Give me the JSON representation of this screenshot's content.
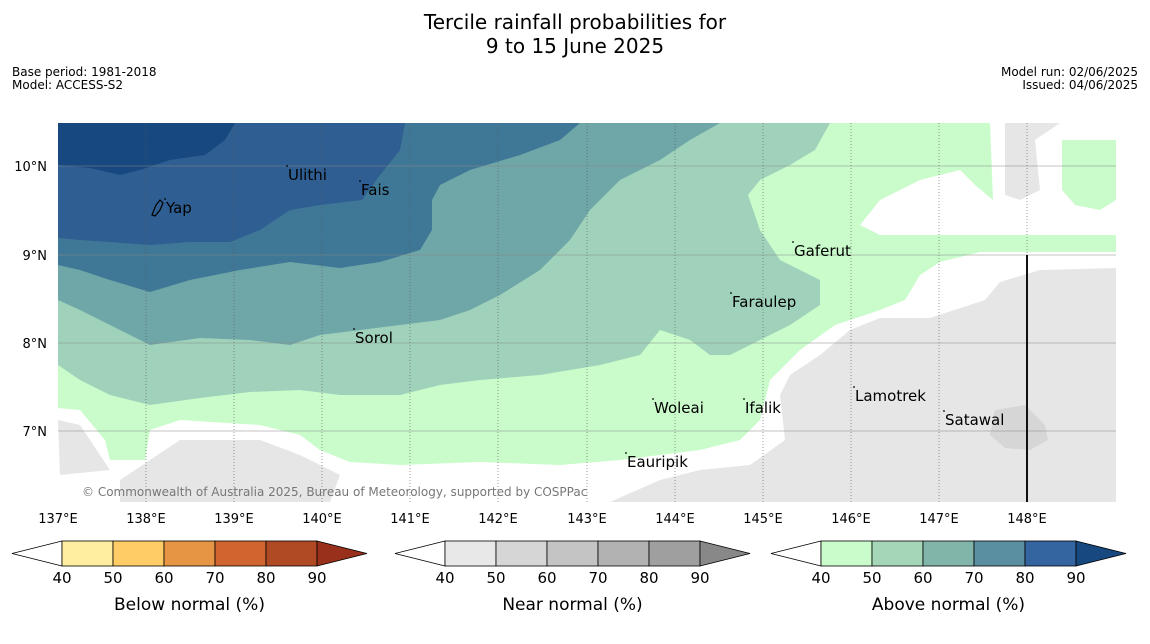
{
  "header": {
    "title_line1": "Tercile rainfall probabilities for",
    "title_line2": "9 to 15 June 2025",
    "base_period": "Base period: 1981-2018",
    "model": "Model: ACCESS-S2",
    "model_run": "Model run: 02/06/2025",
    "issued": "Issued: 04/06/2025"
  },
  "map": {
    "lat_labels": [
      "10°N",
      "9°N",
      "8°N",
      "7°N"
    ],
    "lon_labels": [
      "137°E",
      "138°E",
      "139°E",
      "140°E",
      "141°E",
      "142°E",
      "143°E",
      "144°E",
      "145°E",
      "146°E",
      "147°E",
      "148°E"
    ],
    "places": [
      {
        "name": "Yap"
      },
      {
        "name": "Ulithi"
      },
      {
        "name": "Fais"
      },
      {
        "name": "Gaferut"
      },
      {
        "name": "Faraulep"
      },
      {
        "name": "Sorol"
      },
      {
        "name": "Lamotrek"
      },
      {
        "name": "Woleai"
      },
      {
        "name": "Ifalik"
      },
      {
        "name": "Satawal"
      },
      {
        "name": "Eauripik"
      }
    ],
    "copyright": "© Commonwealth of Australia 2025, Bureau of Meteorology, supported by COSPPac"
  },
  "colorbars": [
    {
      "label": "Below normal (%)",
      "ticks": [
        "40",
        "50",
        "60",
        "70",
        "80",
        "90"
      ],
      "colors": [
        "#ffffff",
        "#ffeea0",
        "#ffcc66",
        "#e69544",
        "#d1652f",
        "#b04a25",
        "#99301c"
      ]
    },
    {
      "label": "Near normal (%)",
      "ticks": [
        "40",
        "50",
        "60",
        "70",
        "80",
        "90"
      ],
      "colors": [
        "#ffffff",
        "#e8e8e8",
        "#d6d6d6",
        "#c4c4c4",
        "#b2b2b2",
        "#9f9f9f",
        "#888888"
      ]
    },
    {
      "label": "Above normal (%)",
      "ticks": [
        "40",
        "50",
        "60",
        "70",
        "80",
        "90"
      ],
      "colors": [
        "#ffffff",
        "#c9fcca",
        "#a4d6b7",
        "#81b5aa",
        "#5a8fa1",
        "#3565a0",
        "#17487f"
      ]
    }
  ]
}
